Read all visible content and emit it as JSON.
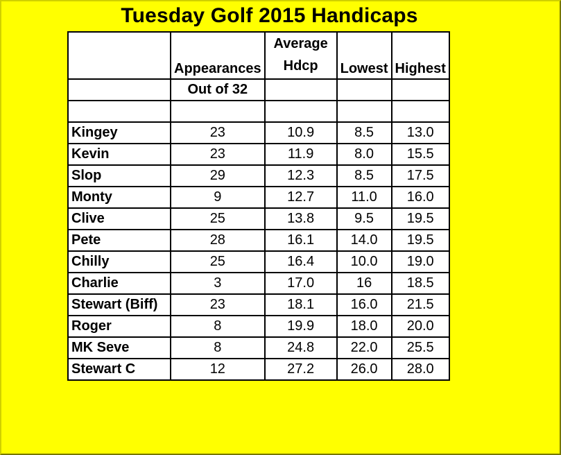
{
  "title": "Tuesday Golf 2015 Handicaps",
  "headers": {
    "appearances": "Appearances",
    "appearances_sub": "Out of 32",
    "average_line1": "Average",
    "average_line2": "Hdcp",
    "lowest": "Lowest",
    "highest": "Highest"
  },
  "rows": [
    {
      "name": "Kingey",
      "appearances": "23",
      "average": "10.9",
      "lowest": "8.5",
      "highest": "13.0"
    },
    {
      "name": "Kevin",
      "appearances": "23",
      "average": "11.9",
      "lowest": "8.0",
      "highest": "15.5"
    },
    {
      "name": "Slop",
      "appearances": "29",
      "average": "12.3",
      "lowest": "8.5",
      "highest": "17.5"
    },
    {
      "name": "Monty",
      "appearances": "9",
      "average": "12.7",
      "lowest": "11.0",
      "highest": "16.0"
    },
    {
      "name": "Clive",
      "appearances": "25",
      "average": "13.8",
      "lowest": "9.5",
      "highest": "19.5"
    },
    {
      "name": "Pete",
      "appearances": "28",
      "average": "16.1",
      "lowest": "14.0",
      "highest": "19.5"
    },
    {
      "name": "Chilly",
      "appearances": "25",
      "average": "16.4",
      "lowest": "10.0",
      "highest": "19.0"
    },
    {
      "name": "Charlie",
      "appearances": "3",
      "average": "17.0",
      "lowest": "16",
      "highest": "18.5"
    },
    {
      "name": "Stewart (Biff)",
      "appearances": "23",
      "average": "18.1",
      "lowest": "16.0",
      "highest": "21.5"
    },
    {
      "name": "Roger",
      "appearances": "8",
      "average": "19.9",
      "lowest": "18.0",
      "highest": "20.0"
    },
    {
      "name": "MK Seve",
      "appearances": "8",
      "average": "24.8",
      "lowest": "22.0",
      "highest": "25.5"
    },
    {
      "name": "Stewart C",
      "appearances": "12",
      "average": "27.2",
      "lowest": "26.0",
      "highest": "28.0"
    }
  ],
  "colors": {
    "background": "#ffff00",
    "table_background": "#ffffff",
    "border": "#000000"
  }
}
